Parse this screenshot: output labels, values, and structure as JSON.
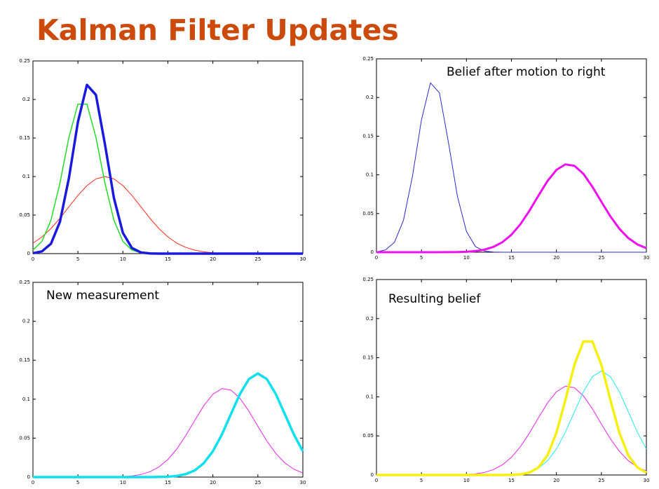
{
  "title": "Kalman Filter Updates",
  "chart_data": [
    {
      "type": "line",
      "x": [
        0,
        1,
        2,
        3,
        4,
        5,
        6,
        7,
        8,
        9,
        10,
        11,
        12,
        13,
        14,
        15,
        16,
        17,
        18,
        19,
        20,
        21,
        22,
        23,
        24,
        25,
        26,
        27,
        28,
        29,
        30
      ],
      "xlim": [
        0,
        30
      ],
      "ylim": [
        0,
        0.25
      ],
      "xticks": [
        0,
        5,
        10,
        15,
        20,
        25,
        30
      ],
      "yticks": [
        0,
        0.05,
        0.1,
        0.15,
        0.2,
        0.25
      ],
      "series": [
        {
          "color": "#ff2a1a",
          "width": 1,
          "values": [
            0.0135,
            0.0216,
            0.0325,
            0.0458,
            0.0607,
            0.0755,
            0.0882,
            0.0969,
            0.1,
            0.0969,
            0.0882,
            0.0755,
            0.0607,
            0.0458,
            0.0325,
            0.0216,
            0.0135,
            0.008,
            0.0044,
            0.0023,
            0.0011,
            null,
            null,
            null,
            null,
            null,
            null,
            null,
            null,
            null,
            null
          ]
        },
        {
          "color": "#22dd22",
          "width": 1.5,
          "values": [
            0.0046,
            0.0159,
            0.0433,
            0.0916,
            0.151,
            0.194,
            0.194,
            0.151,
            0.0916,
            0.0433,
            0.0159,
            0.0046,
            0.001,
            0.0002,
            0,
            0,
            0,
            0,
            0,
            0,
            0,
            0,
            0,
            0,
            0,
            0,
            0,
            0,
            0,
            0,
            0
          ]
        },
        {
          "color": "#1a1adf",
          "width": 3.5,
          "values": [
            0.0005,
            0.0029,
            0.0128,
            0.0413,
            0.0981,
            0.171,
            0.219,
            0.206,
            0.142,
            0.0721,
            0.0268,
            0.0073,
            0.0015,
            0.0002,
            0,
            0,
            0,
            0,
            0,
            0,
            0,
            0,
            0,
            0,
            0,
            0,
            0,
            0,
            0,
            0,
            0
          ]
        }
      ]
    },
    {
      "type": "line",
      "annotation": "Belief after motion to right",
      "x": [
        0,
        1,
        2,
        3,
        4,
        5,
        6,
        7,
        8,
        9,
        10,
        11,
        12,
        13,
        14,
        15,
        16,
        17,
        18,
        19,
        20,
        21,
        22,
        23,
        24,
        25,
        26,
        27,
        28,
        29,
        30
      ],
      "xlim": [
        0,
        30
      ],
      "ylim": [
        0,
        0.25
      ],
      "xticks": [
        0,
        5,
        10,
        15,
        20,
        25,
        30
      ],
      "yticks": [
        0,
        0.05,
        0.1,
        0.15,
        0.2,
        0.25
      ],
      "series": [
        {
          "color": "#2a2acf",
          "width": 1,
          "values": [
            0.0005,
            0.0029,
            0.0128,
            0.0413,
            0.0981,
            0.171,
            0.219,
            0.206,
            0.142,
            0.0721,
            0.0268,
            0.0073,
            0.0015,
            0.0002,
            0,
            0,
            0,
            0,
            0,
            0,
            0,
            0,
            0,
            0,
            0,
            0,
            0,
            0,
            0,
            0,
            0
          ]
        },
        {
          "color": "#ee10ee",
          "width": 3,
          "values": [
            0,
            0,
            0,
            0,
            0,
            0,
            0,
            0,
            0.0001,
            0.0002,
            0.0006,
            0.0015,
            0.0033,
            0.0069,
            0.013,
            0.0226,
            0.0362,
            0.0536,
            0.0731,
            0.0919,
            0.1064,
            0.1136,
            0.1117,
            0.1013,
            0.0846,
            0.0652,
            0.0463,
            0.0303,
            0.0182,
            0.0101,
            0.0052
          ]
        }
      ]
    },
    {
      "type": "line",
      "annotation": "New measurement",
      "x": [
        0,
        1,
        2,
        3,
        4,
        5,
        6,
        7,
        8,
        9,
        10,
        11,
        12,
        13,
        14,
        15,
        16,
        17,
        18,
        19,
        20,
        21,
        22,
        23,
        24,
        25,
        26,
        27,
        28,
        29,
        30
      ],
      "xlim": [
        0,
        30
      ],
      "ylim": [
        0,
        0.25
      ],
      "xticks": [
        0,
        5,
        10,
        15,
        20,
        25,
        30
      ],
      "yticks": [
        0,
        0.05,
        0.1,
        0.15,
        0.2,
        0.25
      ],
      "series": [
        {
          "color": "#ee22ee",
          "width": 1,
          "values": [
            0,
            0,
            0,
            0,
            0,
            0,
            0,
            0,
            0.0001,
            0.0002,
            0.0006,
            0.0015,
            0.0033,
            0.0069,
            0.013,
            0.0226,
            0.0362,
            0.0536,
            0.0731,
            0.0919,
            0.1064,
            0.1136,
            0.1117,
            0.1013,
            0.0846,
            0.0652,
            0.0463,
            0.0303,
            0.0182,
            0.0101,
            0.0052
          ]
        },
        {
          "color": "#10e0ee",
          "width": 3.5,
          "values": [
            0,
            0,
            0,
            0,
            0,
            0,
            0,
            0,
            0,
            0,
            0,
            0,
            0,
            0,
            0.0002,
            0.0005,
            0.0015,
            0.0038,
            0.0087,
            0.018,
            0.0332,
            0.0547,
            0.0807,
            0.1065,
            0.1258,
            0.133,
            0.1258,
            0.1065,
            0.0807,
            0.0547,
            0.0332
          ]
        }
      ]
    },
    {
      "type": "line",
      "annotation": "Resulting belief",
      "x": [
        0,
        1,
        2,
        3,
        4,
        5,
        6,
        7,
        8,
        9,
        10,
        11,
        12,
        13,
        14,
        15,
        16,
        17,
        18,
        19,
        20,
        21,
        22,
        23,
        24,
        25,
        26,
        27,
        28,
        29,
        30
      ],
      "xlim": [
        0,
        30
      ],
      "ylim": [
        0,
        0.25
      ],
      "xticks": [
        0,
        5,
        10,
        15,
        20,
        25,
        30
      ],
      "yticks": [
        0,
        0.05,
        0.1,
        0.15,
        0.2,
        0.25
      ],
      "series": [
        {
          "color": "#ee22ee",
          "width": 1,
          "values": [
            0,
            0,
            0,
            0,
            0,
            0,
            0,
            0,
            0.0001,
            0.0002,
            0.0006,
            0.0015,
            0.0033,
            0.0069,
            0.013,
            0.0226,
            0.0362,
            0.0536,
            0.0731,
            0.0919,
            0.1064,
            0.1136,
            0.1117,
            0.1013,
            0.0846,
            0.0652,
            0.0463,
            0.0303,
            0.0182,
            0.0101,
            0.0052
          ]
        },
        {
          "color": "#22e8ee",
          "width": 1,
          "values": [
            0,
            0,
            0,
            0,
            0,
            0,
            0,
            0,
            0,
            0,
            0,
            0,
            0,
            0,
            0.0002,
            0.0005,
            0.0015,
            0.0038,
            0.0087,
            0.018,
            0.0332,
            0.0547,
            0.0807,
            0.1065,
            0.1258,
            0.133,
            0.1258,
            0.1065,
            0.0807,
            0.0547,
            0.0332
          ]
        },
        {
          "color": "#f5f010",
          "width": 3.5,
          "values": [
            0,
            0,
            0,
            0,
            0,
            0,
            0,
            0,
            0,
            0,
            0,
            0,
            0,
            0,
            0,
            0.0002,
            0.0008,
            0.003,
            0.0096,
            0.025,
            0.0539,
            0.096,
            0.1409,
            0.1708,
            0.1708,
            0.1409,
            0.096,
            0.0539,
            0.025,
            0.0096,
            0.003
          ]
        }
      ]
    }
  ]
}
